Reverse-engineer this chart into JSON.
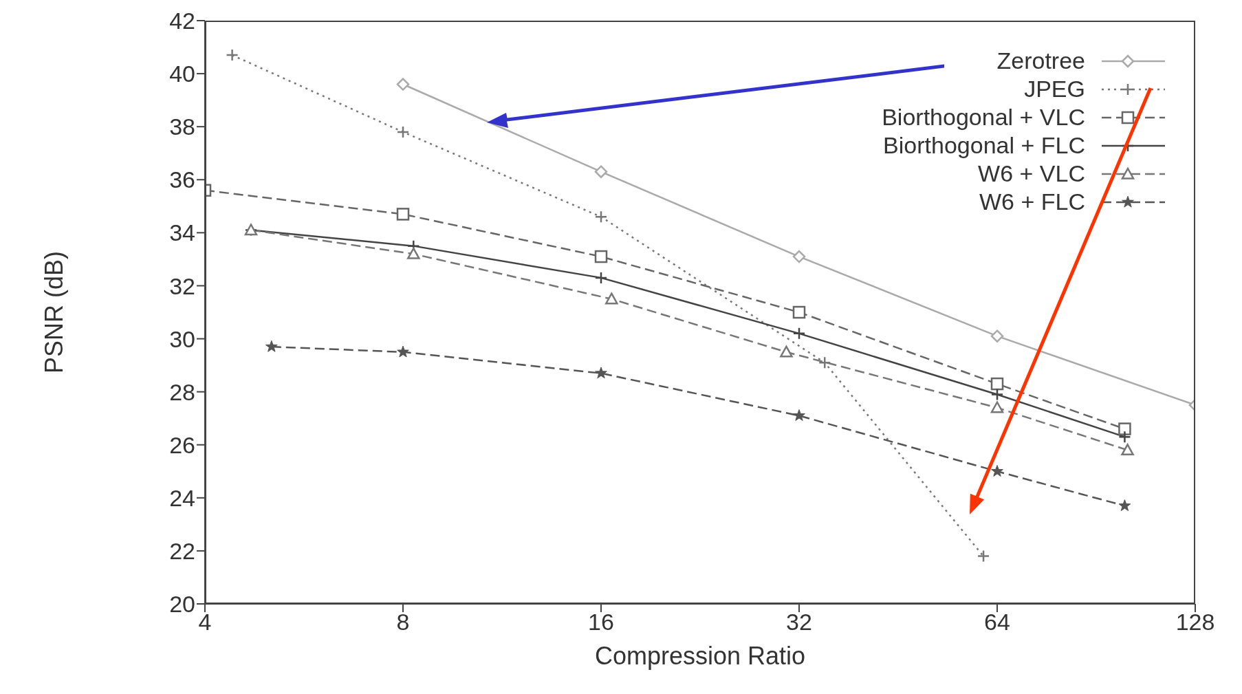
{
  "chart_data": {
    "type": "line",
    "xlabel": "Compression Ratio",
    "ylabel": "PSNR (dB)",
    "log": "x",
    "xlim": [
      4,
      128
    ],
    "xticks": [
      4,
      8,
      16,
      32,
      64,
      128
    ],
    "ylim": [
      20,
      42
    ],
    "yticks": [
      20,
      22,
      24,
      26,
      28,
      30,
      32,
      34,
      36,
      38,
      40,
      42
    ],
    "grid": false,
    "legend": "top right",
    "series": [
      {
        "name": "Zerotree",
        "color": "#aaaaaa",
        "marker": "diamond",
        "line_style": "solid",
        "x": [
          8,
          16,
          32,
          64,
          128
        ],
        "values": [
          39.6,
          36.3,
          33.1,
          30.1,
          27.5
        ]
      },
      {
        "name": "JPEG",
        "color": "#777777",
        "marker": "cross",
        "line_style": "dotted",
        "x": [
          4.4,
          8,
          16,
          35,
          61
        ],
        "values": [
          40.7,
          37.8,
          34.6,
          29.1,
          21.8
        ]
      },
      {
        "name": "Biorthogonal + VLC",
        "color": "#666666",
        "marker": "square",
        "line_style": "dashed",
        "x": [
          4,
          8,
          16,
          32,
          64,
          100
        ],
        "values": [
          35.6,
          34.7,
          33.1,
          31.0,
          28.3,
          26.6
        ]
      },
      {
        "name": "Biorthogonal + FLC",
        "color": "#444444",
        "marker": "cross",
        "line_style": "solid",
        "x": [
          4.7,
          8.3,
          16,
          32,
          64,
          100
        ],
        "values": [
          34.1,
          33.5,
          32.3,
          30.2,
          27.9,
          26.3
        ]
      },
      {
        "name": "W6 + VLC",
        "color": "#777777",
        "marker": "triangle",
        "line_style": "dashed",
        "x": [
          4.7,
          8.3,
          16.6,
          30.6,
          64,
          101
        ],
        "values": [
          34.1,
          33.2,
          31.5,
          29.5,
          27.4,
          25.8
        ]
      },
      {
        "name": "W6 + FLC",
        "color": "#555555",
        "marker": "star",
        "line_style": "dashed",
        "x": [
          5.05,
          8,
          16,
          32,
          64,
          100
        ],
        "values": [
          29.7,
          29.5,
          28.7,
          27.1,
          25.0,
          23.7
        ]
      }
    ]
  }
}
